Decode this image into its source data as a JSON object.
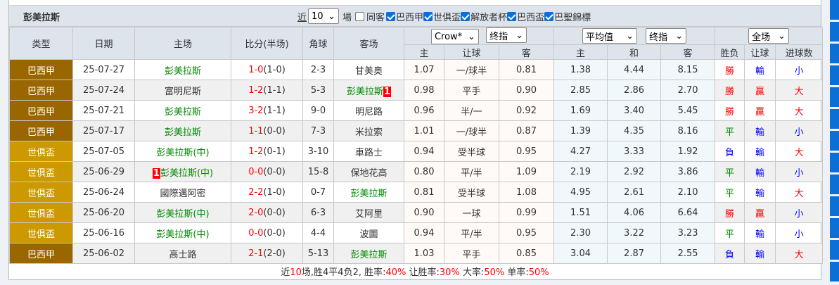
{
  "title": "彭美拉斯",
  "filters": {
    "near_label": "近",
    "count": "10",
    "unit": "場",
    "same_label": "同客",
    "same_checked": false,
    "leagues": [
      {
        "label": "巴西甲",
        "checked": true
      },
      {
        "label": "世俱盃",
        "checked": true
      },
      {
        "label": "解放者杯",
        "checked": true
      },
      {
        "label": "巴西盃",
        "checked": true
      },
      {
        "label": "巴聖錦標",
        "checked": true
      }
    ]
  },
  "header": {
    "type": "类型",
    "date": "日期",
    "home": "主场",
    "score": "比分(半场)",
    "corner": "角球",
    "away": "客场",
    "company": "Crow*",
    "odds_kind1": "终指",
    "avg": "平均值",
    "odds_kind2": "终指",
    "period": "全场",
    "sub": [
      "主",
      "让球",
      "客",
      "主",
      "和",
      "客",
      "胜负",
      "让球",
      "进球数"
    ]
  },
  "colors": {
    "巴西甲": "#996600",
    "世俱盃": "#CC9900"
  },
  "rows": [
    {
      "type": "巴西甲",
      "date": "25-07-27",
      "home": "彭美拉斯",
      "home_hl": true,
      "home_badge": "",
      "ft": "1-0",
      "ht": "(1-0)",
      "corner": "2-3",
      "away": "甘美奧",
      "away_hl": false,
      "away_badge": "",
      "o": [
        "1.07",
        "一/球半",
        "0.81",
        "1.38",
        "4.44",
        "8.15"
      ],
      "r": [
        "勝",
        "輸",
        "小"
      ]
    },
    {
      "type": "巴西甲",
      "date": "25-07-24",
      "home": "富明尼斯",
      "home_hl": false,
      "home_badge": "",
      "ft": "1-2",
      "ht": "(1-1)",
      "corner": "5-3",
      "away": "彭美拉斯",
      "away_hl": true,
      "away_badge": "1",
      "o": [
        "0.98",
        "平手",
        "0.90",
        "2.85",
        "2.86",
        "2.70"
      ],
      "r": [
        "勝",
        "贏",
        "大"
      ]
    },
    {
      "type": "巴西甲",
      "date": "25-07-21",
      "home": "彭美拉斯",
      "home_hl": true,
      "home_badge": "",
      "ft": "3-2",
      "ht": "(1-1)",
      "corner": "9-0",
      "away": "明尼路",
      "away_hl": false,
      "away_badge": "",
      "o": [
        "0.96",
        "半/一",
        "0.92",
        "1.69",
        "3.40",
        "5.45"
      ],
      "r": [
        "勝",
        "贏",
        "大"
      ]
    },
    {
      "type": "巴西甲",
      "date": "25-07-17",
      "home": "彭美拉斯",
      "home_hl": true,
      "home_badge": "",
      "ft": "1-1",
      "ht": "(0-0)",
      "corner": "7-3",
      "away": "米拉索",
      "away_hl": false,
      "away_badge": "",
      "o": [
        "1.01",
        "一/球半",
        "0.87",
        "1.39",
        "4.35",
        "8.16"
      ],
      "r": [
        "平",
        "輸",
        "小"
      ]
    },
    {
      "type": "世俱盃",
      "date": "25-07-05",
      "home": "彭美拉斯(中)",
      "home_hl": true,
      "home_badge": "",
      "ft": "1-2",
      "ht": "(0-1)",
      "corner": "3-10",
      "away": "車路士",
      "away_hl": false,
      "away_badge": "",
      "o": [
        "0.94",
        "受半球",
        "0.95",
        "4.27",
        "3.33",
        "1.92"
      ],
      "r": [
        "負",
        "輸",
        "大"
      ]
    },
    {
      "type": "世俱盃",
      "date": "25-06-29",
      "home": "彭美拉斯(中)",
      "home_hl": true,
      "home_badge": "1",
      "ft": "0-0",
      "ht": "(0-0)",
      "corner": "15-8",
      "away": "保地花高",
      "away_hl": false,
      "away_badge": "",
      "o": [
        "0.80",
        "平/半",
        "1.09",
        "2.19",
        "2.92",
        "3.86"
      ],
      "r": [
        "平",
        "輸",
        "小"
      ]
    },
    {
      "type": "世俱盃",
      "date": "25-06-24",
      "home": "國際邁阿密",
      "home_hl": false,
      "home_badge": "",
      "ft": "2-2",
      "ht": "(1-0)",
      "corner": "0-7",
      "away": "彭美拉斯",
      "away_hl": true,
      "away_badge": "",
      "o": [
        "0.81",
        "受半球",
        "1.08",
        "4.95",
        "2.61",
        "2.10"
      ],
      "r": [
        "平",
        "輸",
        "大"
      ]
    },
    {
      "type": "世俱盃",
      "date": "25-06-20",
      "home": "彭美拉斯(中)",
      "home_hl": true,
      "home_badge": "",
      "ft": "2-0",
      "ht": "(0-0)",
      "corner": "6-3",
      "away": "艾阿里",
      "away_hl": false,
      "away_badge": "",
      "o": [
        "0.90",
        "一球",
        "0.99",
        "1.51",
        "4.06",
        "6.64"
      ],
      "r": [
        "勝",
        "贏",
        "小"
      ]
    },
    {
      "type": "世俱盃",
      "date": "25-06-16",
      "home": "彭美拉斯(中)",
      "home_hl": true,
      "home_badge": "",
      "ft": "0-0",
      "ht": "(0-0)",
      "corner": "4-4",
      "away": "波圖",
      "away_hl": false,
      "away_badge": "",
      "o": [
        "0.94",
        "平/半",
        "0.95",
        "2.30",
        "3.22",
        "3.23"
      ],
      "r": [
        "平",
        "輸",
        "小"
      ]
    },
    {
      "type": "巴西甲",
      "date": "25-06-02",
      "home": "高士路",
      "home_hl": false,
      "home_badge": "",
      "ft": "2-1",
      "ht": "(2-0)",
      "corner": "5-13",
      "away": "彭美拉斯",
      "away_hl": true,
      "away_badge": "",
      "o": [
        "1.03",
        "平手",
        "0.85",
        "3.04",
        "2.87",
        "2.55"
      ],
      "r": [
        "負",
        "輸",
        "大"
      ]
    }
  ],
  "footer": {
    "p1": "近",
    "n": "10",
    "p2": "场,胜4平4负2, 胜率:",
    "win": "40%",
    "p3": " 让胜率:",
    "hwin": "30%",
    "p4": " 大率:",
    "big": "50%",
    "p5": " 单率:",
    "odd": "50%"
  }
}
